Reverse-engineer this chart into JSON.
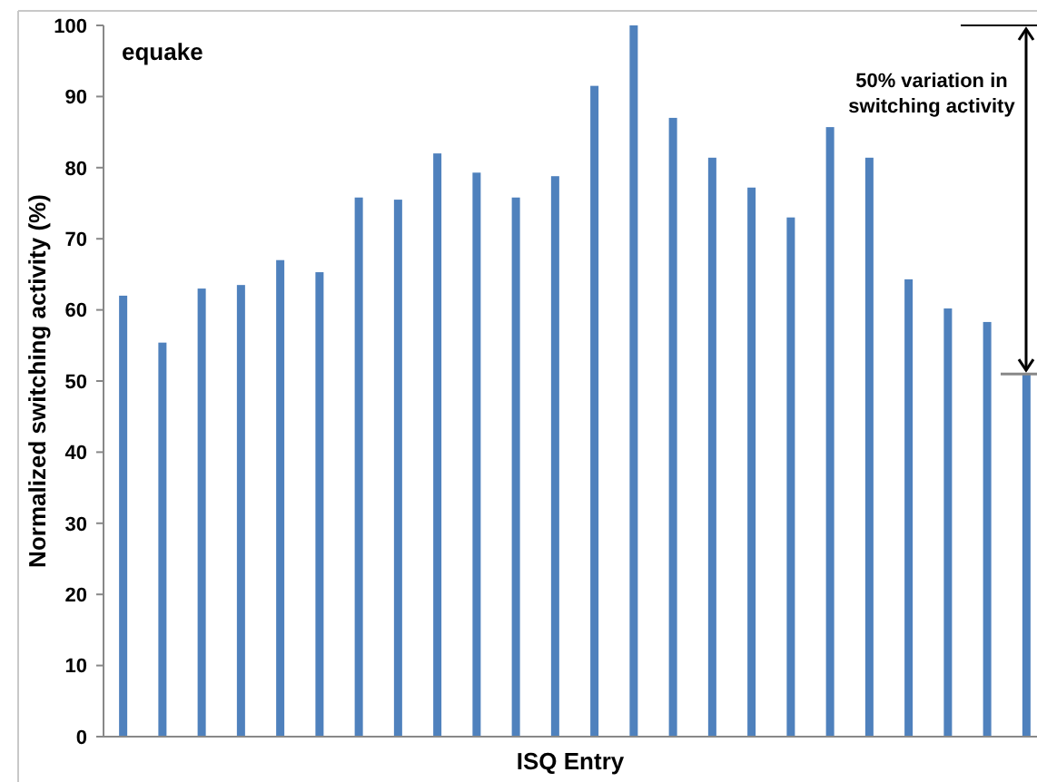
{
  "chart_data": {
    "type": "bar",
    "title": "equake",
    "xlabel": "ISQ Entry",
    "ylabel": "Normalized switching activity (%)",
    "categories": [
      null,
      null,
      null,
      null,
      null,
      null,
      null,
      null,
      null,
      null,
      null,
      null,
      null,
      null,
      null,
      null,
      null,
      null,
      null,
      null,
      null,
      null,
      null,
      null
    ],
    "values": [
      62,
      55.4,
      63,
      63.5,
      67,
      65.3,
      75.8,
      75.5,
      82,
      79.3,
      75.8,
      78.8,
      91.5,
      100,
      87,
      81.4,
      77.2,
      73,
      85.7,
      81.4,
      64.3,
      60.2,
      58.3,
      51
    ],
    "color": "#4f81bd",
    "ylim": [
      0,
      100
    ],
    "yticks": [
      0,
      10,
      20,
      30,
      40,
      50,
      60,
      70,
      80,
      90,
      100
    ],
    "grid": false,
    "annotations": [
      "50% variation in switching activity"
    ]
  }
}
